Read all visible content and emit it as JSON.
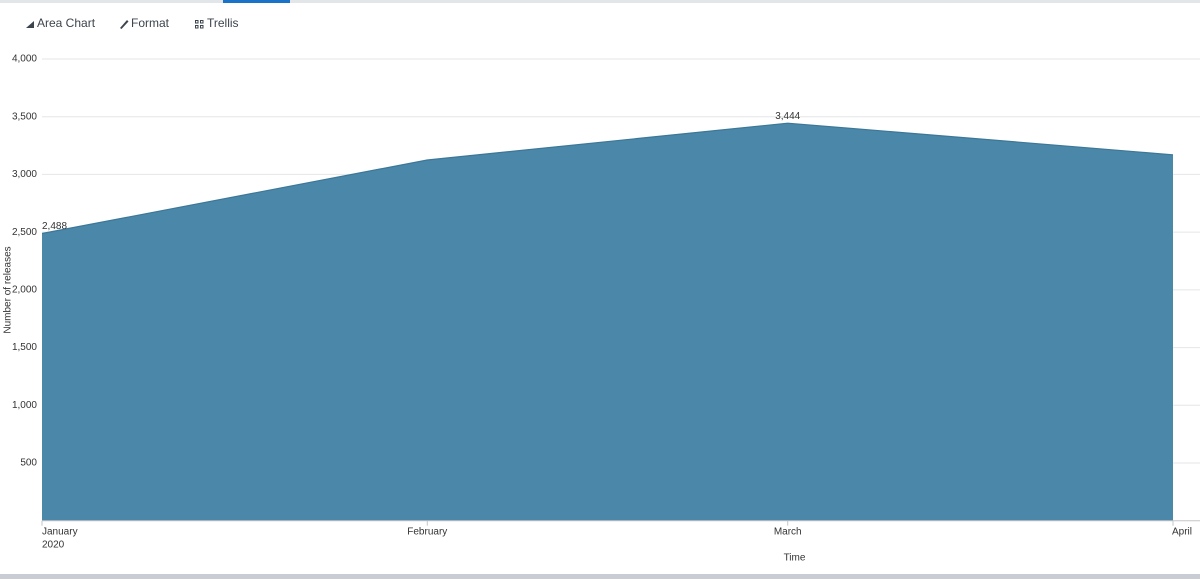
{
  "toolbar": {
    "items": [
      "Area Chart",
      "Format",
      "Trellis"
    ]
  },
  "chart_data": {
    "type": "area",
    "x": [
      "2020-01",
      "2020-02",
      "2020-03",
      "2020-04"
    ],
    "values": [
      2488,
      3125,
      3444,
      3170
    ],
    "value_labels": [
      "2,488",
      null,
      "3,444",
      null
    ],
    "color": "#4a87a8",
    "xlim": [
      "2020-01",
      "2020-04"
    ],
    "xticks": [
      {
        "value": "2020-01",
        "label": "January"
      },
      {
        "value": "2020-02",
        "label": "February"
      },
      {
        "value": "2020-03",
        "label": "March"
      },
      {
        "value": "2020-04",
        "label": "April"
      }
    ],
    "x_year_label": "2020",
    "ylim": [
      0,
      4000
    ],
    "yticks": [
      500,
      {
        "value": 1000,
        "label": "1,000"
      },
      {
        "value": 1500,
        "label": "1,500"
      },
      {
        "value": 2000,
        "label": "2,000"
      },
      {
        "value": 2500,
        "label": "2,500"
      },
      {
        "value": 3000,
        "label": "3,000"
      },
      {
        "value": 3500,
        "label": "3,500"
      },
      {
        "value": 4000,
        "label": "4,000"
      }
    ],
    "grid": true,
    "x_label": "Time",
    "y_label": "Number of releases"
  }
}
